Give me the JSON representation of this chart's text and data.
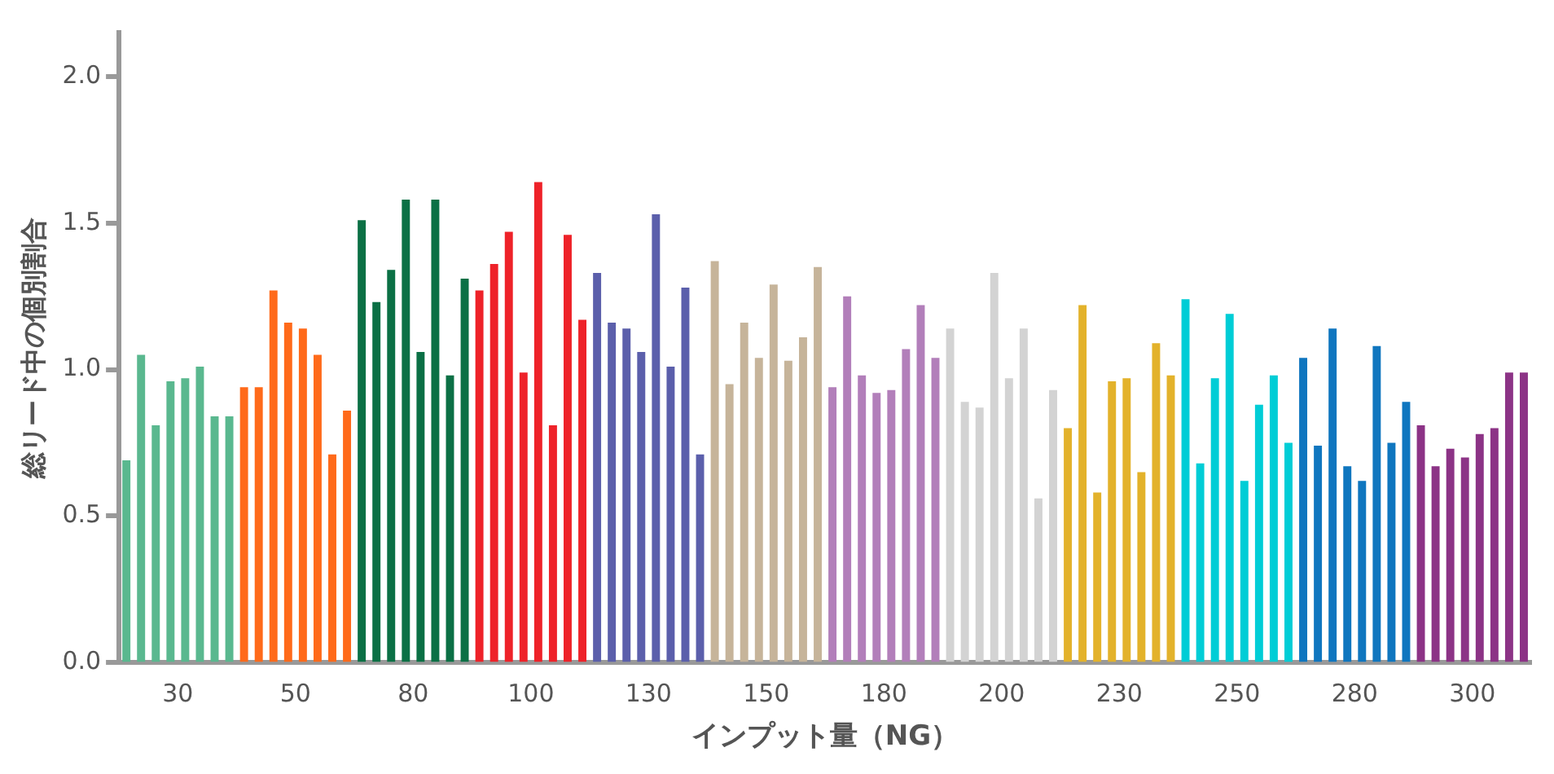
{
  "chart_data": {
    "type": "bar",
    "xlabel": "インプット量（NG）",
    "ylabel": "総リード中の個別割合",
    "categories": [
      "30",
      "50",
      "80",
      "100",
      "130",
      "150",
      "180",
      "200",
      "230",
      "250",
      "280",
      "300"
    ],
    "ylim": [
      0,
      2.15
    ],
    "yticks": [
      {
        "value": 0,
        "label": "0.0"
      },
      {
        "value": 0.5,
        "label": "0.5"
      },
      {
        "value": 1,
        "label": "1.0"
      },
      {
        "value": 1.5,
        "label": "1.5"
      },
      {
        "value": 2,
        "label": "2.0"
      }
    ],
    "grid": false,
    "legend": false,
    "series": [
      {
        "colors": [
          "#5ab88f",
          "#ff6a1a",
          "#0b7045",
          "#ee2229",
          "#5b5fab",
          "#c6b49a",
          "#b27fba",
          "#d3d3d3",
          "#e3b22b",
          "#00cdd6",
          "#0f76bf",
          "#8c3386"
        ],
        "values": [
          0.69,
          0.94,
          1.51,
          1.27,
          1.33,
          1.37,
          0.94,
          1.14,
          0.8,
          1.24,
          1.04,
          0.81
        ]
      },
      {
        "colors": [
          "#5ab88f",
          "#ff6a1a",
          "#0b7045",
          "#ee2229",
          "#5b5fab",
          "#c6b49a",
          "#b27fba",
          "#d3d3d3",
          "#e3b22b",
          "#00cdd6",
          "#0f76bf",
          "#8c3386"
        ],
        "values": [
          1.05,
          0.94,
          1.23,
          1.36,
          1.16,
          0.95,
          1.25,
          0.89,
          1.22,
          0.68,
          0.74,
          0.67
        ]
      },
      {
        "colors": [
          "#5ab88f",
          "#ff6a1a",
          "#0b7045",
          "#ee2229",
          "#5b5fab",
          "#c6b49a",
          "#b27fba",
          "#d3d3d3",
          "#e3b22b",
          "#00cdd6",
          "#0f76bf",
          "#8c3386"
        ],
        "values": [
          0.81,
          1.27,
          1.34,
          1.47,
          1.14,
          1.16,
          0.98,
          0.87,
          0.58,
          0.97,
          1.14,
          0.73
        ]
      },
      {
        "colors": [
          "#5ab88f",
          "#ff6a1a",
          "#0b7045",
          "#ee2229",
          "#5b5fab",
          "#c6b49a",
          "#b27fba",
          "#d3d3d3",
          "#e3b22b",
          "#00cdd6",
          "#0f76bf",
          "#8c3386"
        ],
        "values": [
          0.96,
          1.16,
          1.58,
          0.99,
          1.06,
          1.04,
          0.92,
          1.33,
          0.96,
          1.19,
          0.67,
          0.7
        ]
      },
      {
        "colors": [
          "#5ab88f",
          "#ff6a1a",
          "#0b7045",
          "#ee2229",
          "#5b5fab",
          "#c6b49a",
          "#b27fba",
          "#d3d3d3",
          "#e3b22b",
          "#00cdd6",
          "#0f76bf",
          "#8c3386"
        ],
        "values": [
          0.97,
          1.14,
          1.06,
          1.64,
          1.53,
          1.29,
          0.93,
          0.97,
          0.97,
          0.62,
          0.62,
          0.78
        ]
      },
      {
        "colors": [
          "#5ab88f",
          "#ff6a1a",
          "#0b7045",
          "#ee2229",
          "#5b5fab",
          "#c6b49a",
          "#b27fba",
          "#d3d3d3",
          "#e3b22b",
          "#00cdd6",
          "#0f76bf",
          "#8c3386"
        ],
        "values": [
          1.01,
          1.05,
          1.58,
          0.81,
          1.01,
          1.03,
          1.07,
          1.14,
          0.65,
          0.88,
          1.08,
          0.8
        ]
      },
      {
        "colors": [
          "#5ab88f",
          "#ff6a1a",
          "#0b7045",
          "#ee2229",
          "#5b5fab",
          "#c6b49a",
          "#b27fba",
          "#d3d3d3",
          "#e3b22b",
          "#00cdd6",
          "#0f76bf",
          "#8c3386"
        ],
        "values": [
          0.84,
          0.71,
          0.98,
          1.46,
          1.28,
          1.11,
          1.22,
          0.56,
          1.09,
          0.98,
          0.75,
          0.99
        ]
      },
      {
        "colors": [
          "#5ab88f",
          "#ff6a1a",
          "#0b7045",
          "#ee2229",
          "#5b5fab",
          "#c6b49a",
          "#b27fba",
          "#d3d3d3",
          "#e3b22b",
          "#00cdd6",
          "#0f76bf",
          "#8c3386"
        ],
        "values": [
          0.84,
          0.86,
          1.31,
          1.17,
          0.71,
          1.35,
          1.04,
          0.93,
          0.98,
          0.75,
          0.89,
          0.99
        ]
      }
    ]
  }
}
